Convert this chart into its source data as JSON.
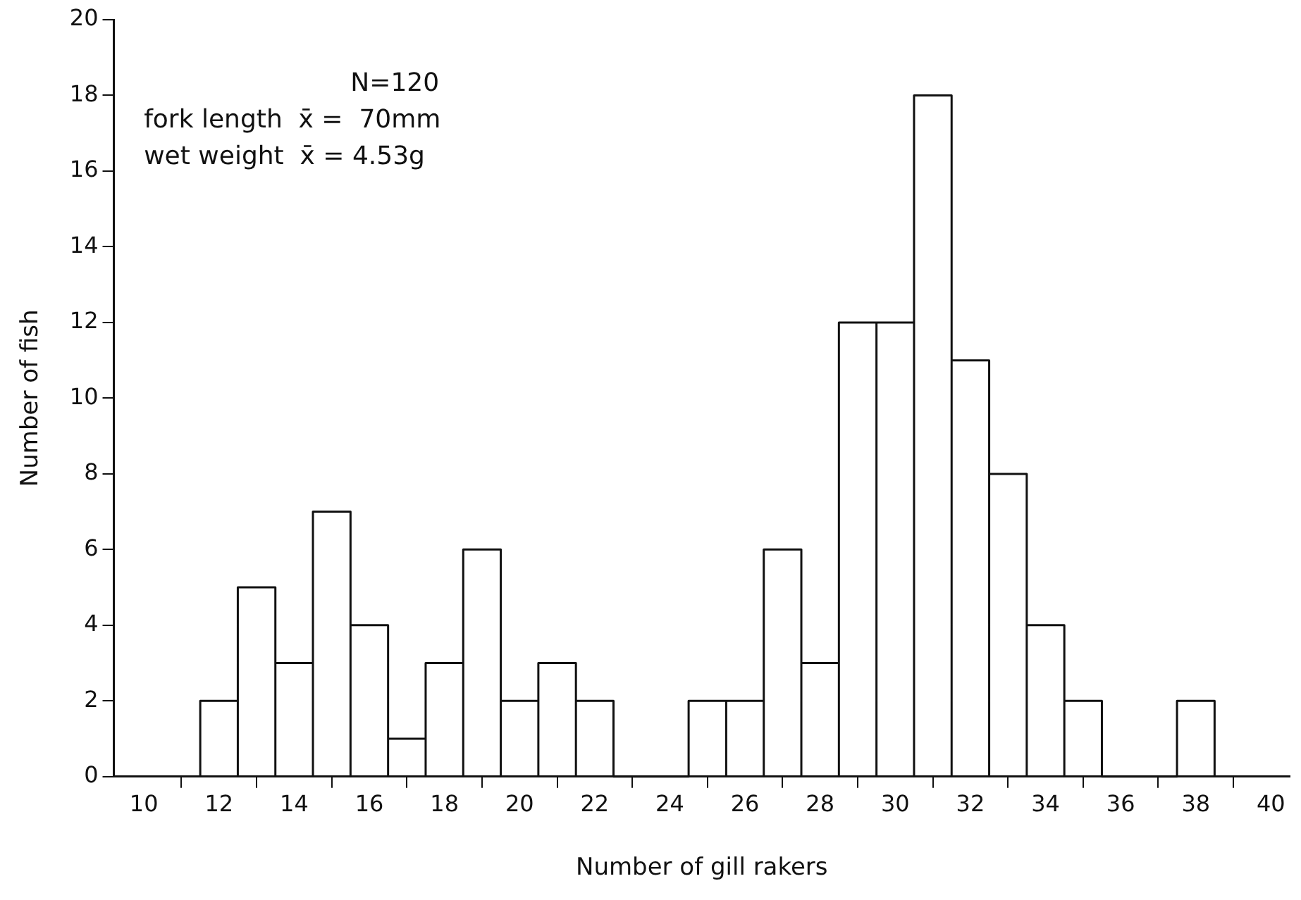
{
  "chart_data": {
    "type": "histogram",
    "xlabel": "Number of gill rakers",
    "ylabel": "Number of fish",
    "annotations": [
      "N=120",
      "fork length  x̄ =  70mm",
      "wet weight  x̄ = 4.53g"
    ],
    "bins": [
      11.5,
      12.5,
      13.5,
      14.5,
      15.5,
      16.5,
      17.5,
      18.5,
      19.5,
      20.5,
      21.5,
      22.5,
      23.5,
      24.5,
      25.5,
      26.5,
      27.5,
      28.5,
      29.5,
      30.5,
      31.5,
      32.5,
      33.5,
      34.5,
      35.5,
      36.5,
      37.5,
      38.5
    ],
    "values": [
      2,
      5,
      3,
      7,
      4,
      1,
      3,
      6,
      2,
      3,
      2,
      0,
      0,
      2,
      2,
      6,
      3,
      12,
      12,
      18,
      11,
      8,
      4,
      2,
      0,
      0,
      2
    ],
    "color": "#111111",
    "xlim": [
      9.2,
      40.5
    ],
    "xticks": [
      10,
      12,
      14,
      16,
      18,
      20,
      22,
      24,
      26,
      28,
      30,
      32,
      34,
      36,
      38,
      40
    ],
    "ylim": [
      0,
      20
    ],
    "yticks": [
      0,
      2,
      4,
      6,
      8,
      10,
      12,
      14,
      16,
      18,
      20
    ],
    "grid": false,
    "legend": false
  }
}
